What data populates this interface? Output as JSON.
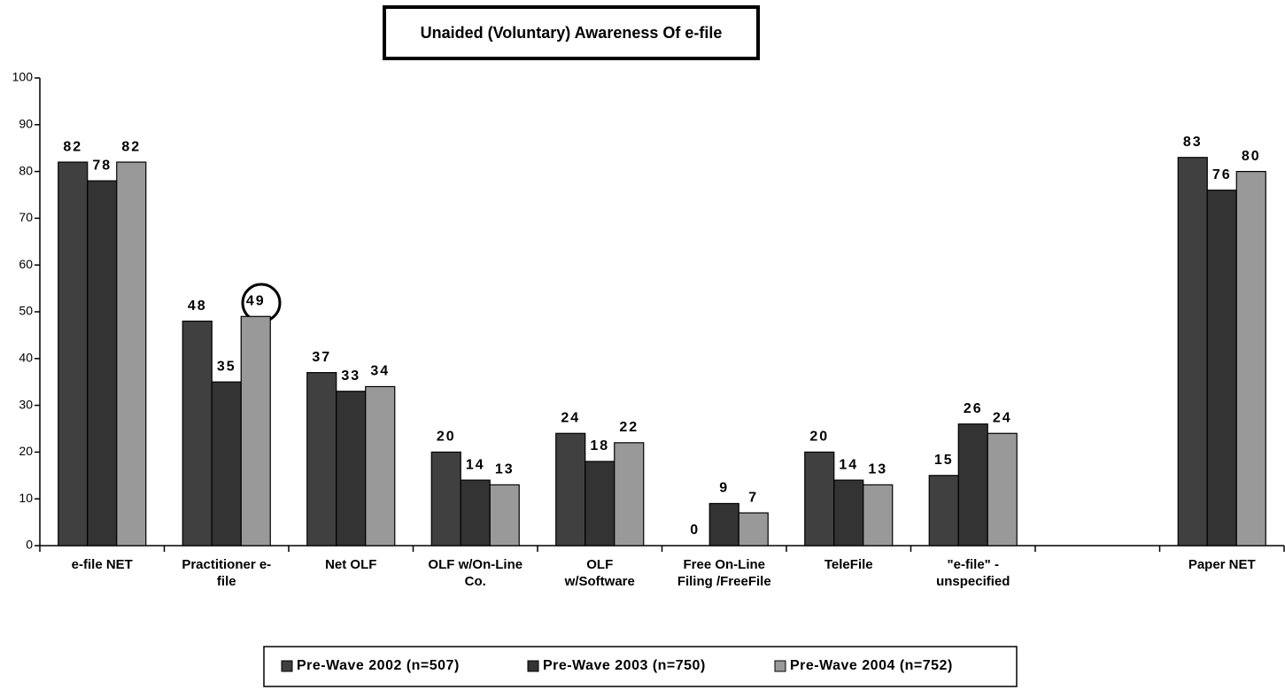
{
  "chart_data": {
    "type": "bar",
    "title": "Unaided (Voluntary) Awareness Of e-file",
    "categories": [
      "e-file NET",
      "Practitioner e-file",
      "Net OLF",
      "OLF w/On-Line Co.",
      "OLF w/Software",
      "Free On-Line Filing /FreeFile",
      "TeleFile",
      "\"e-file\" - unspecified",
      null,
      "Paper NET"
    ],
    "series": [
      {
        "name": "Pre-Wave 2002 (n=507)",
        "color": "#404040",
        "values": [
          82,
          48,
          37,
          20,
          24,
          0,
          20,
          15,
          null,
          83
        ]
      },
      {
        "name": "Pre-Wave 2003 (n=750)",
        "color": "#333333",
        "values": [
          78,
          35,
          33,
          14,
          18,
          9,
          14,
          26,
          null,
          76
        ]
      },
      {
        "name": "Pre-Wave 2004 (n=752)",
        "color": "#999999",
        "values": [
          82,
          49,
          34,
          13,
          22,
          7,
          13,
          24,
          null,
          80
        ]
      }
    ],
    "ylim": [
      0,
      100
    ],
    "yticks": [
      0,
      10,
      20,
      30,
      40,
      50,
      60,
      70,
      80,
      90,
      100
    ],
    "grid": false,
    "legend": "bottom"
  }
}
